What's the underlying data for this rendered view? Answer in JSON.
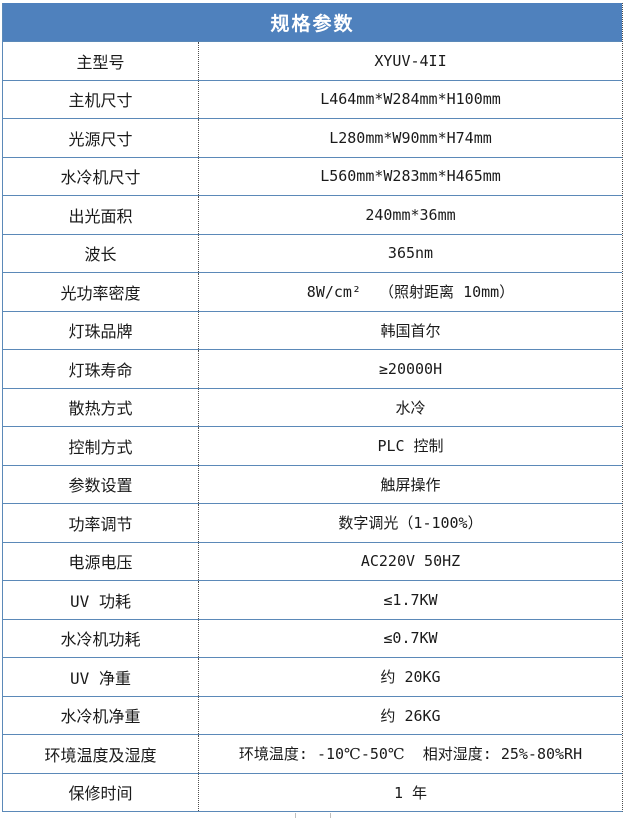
{
  "table": {
    "title": "规格参数",
    "rows": [
      {
        "label": "主型号",
        "value": "XYUV-4II"
      },
      {
        "label": "主机尺寸",
        "value": "L464mm*W284mm*H100mm"
      },
      {
        "label": "光源尺寸",
        "value": "L280mm*W90mm*H74mm"
      },
      {
        "label": "水冷机尺寸",
        "value": "L560mm*W283mm*H465mm"
      },
      {
        "label": "出光面积",
        "value": "240mm*36mm"
      },
      {
        "label": "波长",
        "value": "365nm"
      },
      {
        "label": "光功率密度",
        "value": "8W/cm²  （照射距离 10mm）"
      },
      {
        "label": "灯珠品牌",
        "value": "韩国首尔"
      },
      {
        "label": "灯珠寿命",
        "value": "≥20000H"
      },
      {
        "label": "散热方式",
        "value": "水冷"
      },
      {
        "label": "控制方式",
        "value": "PLC 控制"
      },
      {
        "label": "参数设置",
        "value": "触屏操作"
      },
      {
        "label": "功率调节",
        "value": "数字调光（1-100%）"
      },
      {
        "label": "电源电压",
        "value": "AC220V 50HZ"
      },
      {
        "label": "UV 功耗",
        "value": "≤1.7KW"
      },
      {
        "label": "水冷机功耗",
        "value": "≤0.7KW"
      },
      {
        "label": "UV 净重",
        "value": "约 20KG"
      },
      {
        "label": "水冷机净重",
        "value": "约 26KG"
      },
      {
        "label": "环境温度及湿度",
        "value": "环境温度: -10℃-50℃  相对湿度: 25%-80%RH"
      },
      {
        "label": "保修时间",
        "value": "1 年"
      }
    ]
  },
  "colors": {
    "header_bg": "#4f81bd",
    "header_text": "#ffffff",
    "grid_line": "#5b89b8",
    "divider_dotted": "#4d4d4d",
    "text": "#1a1a1a"
  }
}
